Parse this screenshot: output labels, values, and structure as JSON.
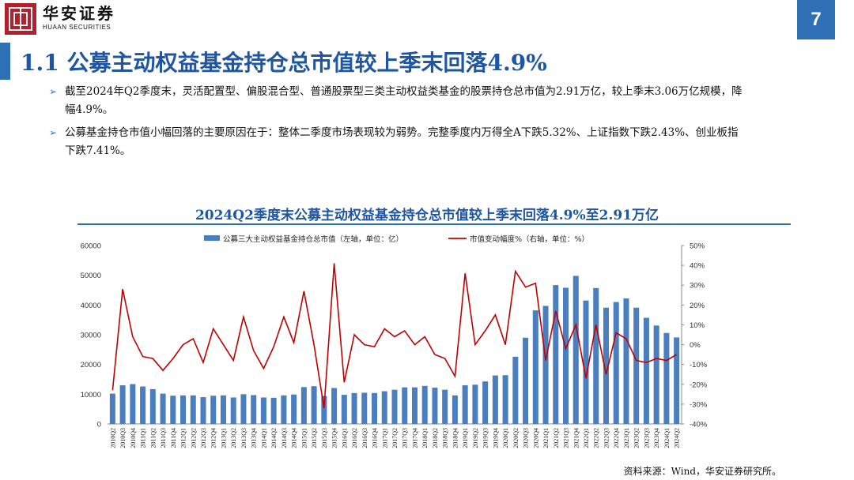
{
  "header": {
    "brand_cn": "华安证券",
    "brand_en": "HUAAN SECURITIES",
    "page_number": "7"
  },
  "title": "1.1 公募主动权益基金持仓总市值较上季末回落4.9%",
  "bullets": [
    "截至2024年Q2季度末，灵活配置型、偏股混合型、普通股票型三类主动权益类基金的股票持仓总市值为2.91万亿，较上季末3.06万亿规模，降幅4.9%。",
    "公募基金持仓市值小幅回落的主要原因在于：整体二季度市场表现较为弱势。完整季度内万得全A下跌5.32%、上证指数下跌2.43%、创业板指下跌7.41%。"
  ],
  "source": "资料来源：Wind，华安证券研究所。",
  "colors": {
    "accent": "#2e6fb6",
    "bar": "#4a7ebf",
    "line": "#c00000",
    "brand_red": "#b21f2d"
  },
  "chart_data": {
    "type": "bar+line",
    "title": "2024Q2季度末公募主动权益基金持仓总市值较上季末回落4.9%至2.91万亿",
    "categories": [
      "2010Q2",
      "2010Q3",
      "2010Q4",
      "2011Q1",
      "2011Q2",
      "2011Q3",
      "2011Q4",
      "2012Q1",
      "2012Q2",
      "2012Q3",
      "2012Q4",
      "2013Q1",
      "2013Q2",
      "2013Q3",
      "2013Q4",
      "2014Q1",
      "2014Q2",
      "2014Q3",
      "2014Q4",
      "2015Q1",
      "2015Q2",
      "2015Q3",
      "2015Q4",
      "2016Q1",
      "2016Q2",
      "2016Q3",
      "2016Q4",
      "2017Q1",
      "2017Q2",
      "2017Q3",
      "2017Q4",
      "2018Q1",
      "2018Q2",
      "2018Q3",
      "2018Q4",
      "2019Q1",
      "2019Q2",
      "2019Q3",
      "2019Q4",
      "2020Q1",
      "2020Q2",
      "2020Q3",
      "2020Q4",
      "2021Q1",
      "2021Q2",
      "2021Q3",
      "2021Q4",
      "2022Q1",
      "2022Q2",
      "2022Q3",
      "2022Q4",
      "2023Q1",
      "2023Q2",
      "2023Q3",
      "2023Q4",
      "2024Q1",
      "2024Q2"
    ],
    "series": [
      {
        "name": "公募三大主动权益基金持仓总市值（左轴，单位：亿）",
        "type": "bar",
        "axis": "left",
        "values": [
          10200,
          13000,
          13400,
          12600,
          11700,
          10200,
          9500,
          9600,
          9600,
          9000,
          9500,
          9600,
          8900,
          10000,
          9700,
          8900,
          8800,
          9600,
          9900,
          12400,
          12700,
          9400,
          12100,
          9800,
          10400,
          10500,
          10400,
          11000,
          11500,
          12300,
          12300,
          12800,
          12200,
          11500,
          9600,
          13000,
          13200,
          14300,
          16300,
          16400,
          22600,
          29000,
          38200,
          39700,
          46700,
          45800,
          49800,
          41500,
          45700,
          39100,
          41000,
          42200,
          39100,
          35700,
          33100,
          30600,
          29100
        ]
      },
      {
        "name": "市值变动幅度%（右轴，单位：%）",
        "type": "line",
        "axis": "right",
        "values": [
          -23,
          28,
          4,
          -6,
          -7,
          -13,
          -7,
          0,
          3,
          -9,
          8,
          0,
          -8,
          14,
          -3,
          -12,
          -1,
          14,
          1,
          27,
          0,
          -32,
          41,
          -19,
          5,
          0,
          -1,
          8,
          4,
          7,
          0,
          4,
          -5,
          -7,
          -16,
          36,
          0,
          7,
          15,
          0,
          37,
          29,
          31,
          -8,
          17,
          -2,
          10,
          -17,
          10,
          -15,
          6,
          3,
          -8,
          -9,
          -7,
          -8,
          -5
        ]
      }
    ],
    "ylim_left": [
      0,
      60000
    ],
    "yticks_left": [
      "0",
      "10000",
      "20000",
      "30000",
      "40000",
      "50000",
      "60000"
    ],
    "ylim_right": [
      -40,
      50
    ],
    "yticks_right": [
      "-40%",
      "-30%",
      "-20%",
      "-10%",
      "0%",
      "10%",
      "20%",
      "30%",
      "40%",
      "50%"
    ],
    "legend_position": "top"
  }
}
